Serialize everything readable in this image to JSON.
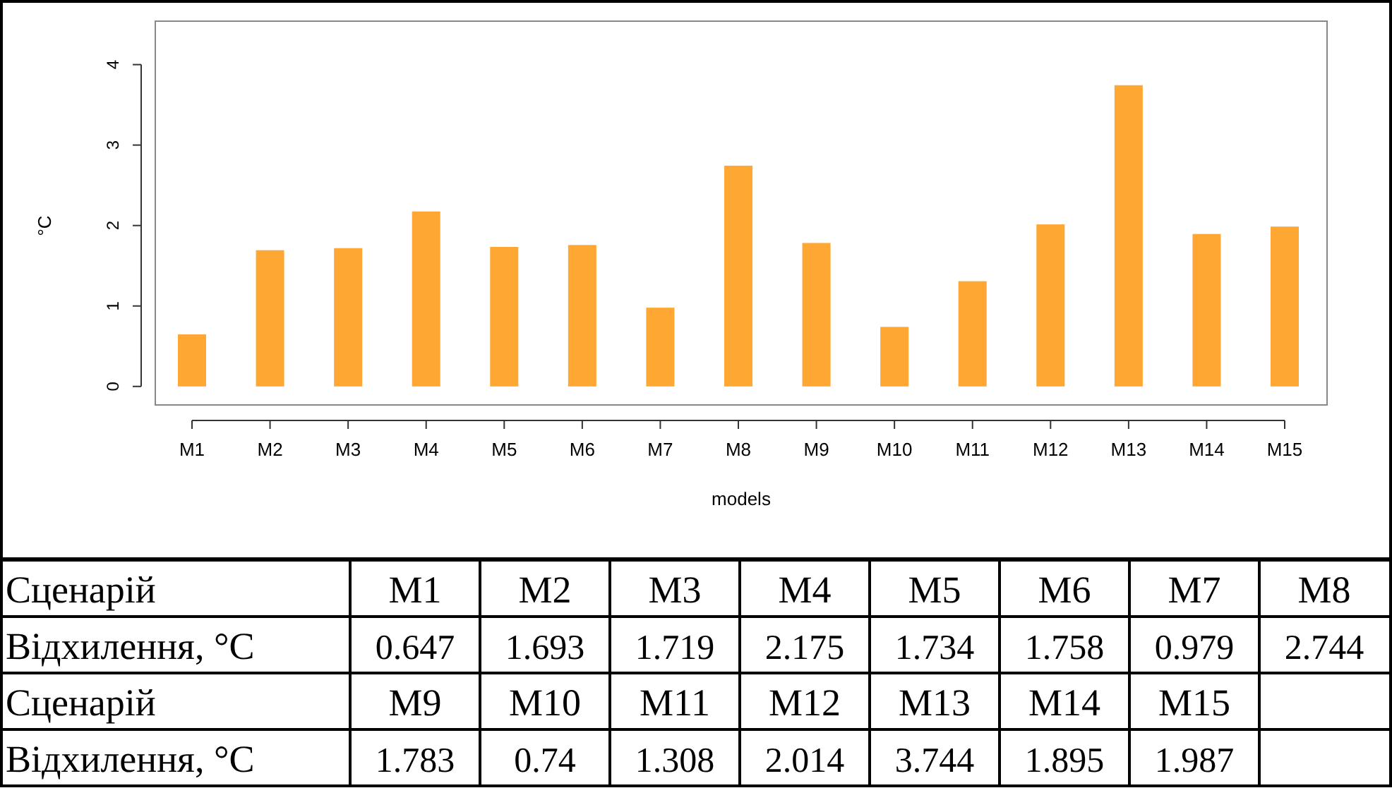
{
  "chart_data": [
    {
      "type": "bar",
      "xlabel": "models",
      "ylabel": "°C",
      "grid": false,
      "categories": [
        "M1",
        "M2",
        "M3",
        "M4",
        "M5",
        "M6",
        "M7",
        "M8",
        "M9",
        "M10",
        "M11",
        "M12",
        "M13",
        "M14",
        "M15"
      ],
      "values": [
        0.647,
        1.693,
        1.719,
        2.175,
        1.734,
        1.758,
        0.979,
        2.744,
        1.783,
        0.74,
        1.308,
        2.014,
        3.744,
        1.895,
        1.987
      ],
      "color": "#ffa733",
      "ylim": [
        -0.23,
        4.54
      ],
      "yticks": [
        0,
        1,
        2,
        3,
        4
      ]
    },
    {
      "type": "other",
      "annotations": [
        "Сценарій",
        "M1",
        "M2",
        "M3",
        "M4",
        "M5",
        "M6",
        "M7",
        "M8",
        "Відхилення, °C",
        "0.647",
        "1.693",
        "1.719",
        "2.175",
        "1.734",
        "1.758",
        "0.979",
        "2.744",
        "Сценарій",
        "M9",
        "M10",
        "M11",
        "M12",
        "M13",
        "M14",
        "M15",
        "Відхилення, °C",
        "1.783",
        "0.74",
        "1.308",
        "2.014",
        "3.744",
        "1.895",
        "1.987"
      ]
    }
  ]
}
